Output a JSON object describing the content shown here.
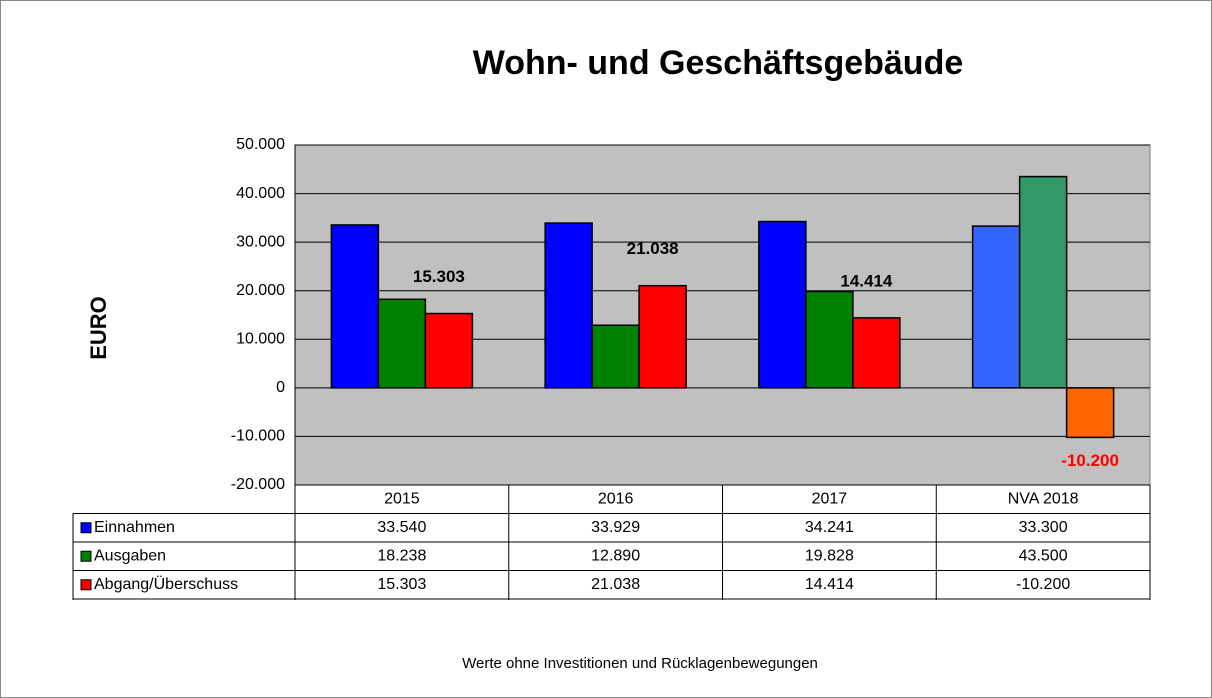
{
  "chart_data": {
    "type": "bar",
    "title": "Wohn- und Geschäftsgebäude",
    "ylabel": "EURO",
    "footnote": "Werte ohne Investitionen und Rücklagenbewegungen",
    "categories": [
      "2015",
      "2016",
      "2017",
      "NVA 2018"
    ],
    "series": [
      {
        "name": "Einnahmen",
        "color": "#0000ff",
        "colors": [
          "#0000ff",
          "#0000ff",
          "#0000ff",
          "#3366ff"
        ],
        "values": [
          33540,
          33929,
          34241,
          33300
        ],
        "value_labels": [
          "33.540",
          "33.929",
          "34.241",
          "33.300"
        ]
      },
      {
        "name": "Ausgaben",
        "color": "#008000",
        "colors": [
          "#008000",
          "#008000",
          "#008000",
          "#339966"
        ],
        "values": [
          18238,
          12890,
          19828,
          43500
        ],
        "value_labels": [
          "18.238",
          "12.890",
          "19.828",
          "43.500"
        ]
      },
      {
        "name": "Abgang/Überschuss",
        "color": "#ff0000",
        "colors": [
          "#ff0000",
          "#ff0000",
          "#ff0000",
          "#ff6600"
        ],
        "values": [
          15303,
          21038,
          14414,
          -10200
        ],
        "value_labels": [
          "15.303",
          "21.038",
          "14.414",
          "-10.200"
        ],
        "data_labels": true,
        "label_colors": [
          "#000000",
          "#000000",
          "#000000",
          "#ff0000"
        ]
      }
    ],
    "ylim": [
      -20000,
      50000
    ],
    "yticks": [
      {
        "value": -20000,
        "label": "-20.000"
      },
      {
        "value": -10000,
        "label": "-10.000"
      },
      0,
      {
        "value": 10000,
        "label": "10.000"
      },
      {
        "value": 20000,
        "label": "20.000"
      },
      {
        "value": 30000,
        "label": "30.000"
      },
      {
        "value": 40000,
        "label": "40.000"
      },
      {
        "value": 50000,
        "label": "50.000"
      }
    ],
    "grid": true,
    "plot_background": "#c0c0c0"
  }
}
